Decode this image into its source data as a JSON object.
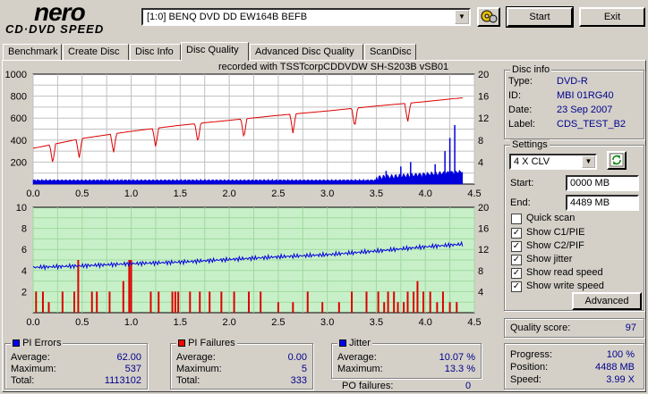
{
  "app": {
    "logo_top": "nero",
    "logo_bottom": "CD·DVD SPEED"
  },
  "toolbar": {
    "drive": "[1:0]   BENQ DVD DD EW164B BEFB",
    "start_label": "Start",
    "exit_label": "Exit"
  },
  "tabs": [
    {
      "label": "Benchmark"
    },
    {
      "label": "Create Disc"
    },
    {
      "label": "Disc Info"
    },
    {
      "label": "Disc Quality"
    },
    {
      "label": "Advanced Disc Quality"
    },
    {
      "label": "ScanDisc"
    }
  ],
  "chart_header": "recorded with TSSTcorpCDDVDW SH-S203B   vSB01",
  "chart_data": [
    {
      "type": "area",
      "name": "top",
      "x_ticks": [
        "0.0",
        "0.5",
        "1.0",
        "1.5",
        "2.0",
        "2.5",
        "3.0",
        "3.5",
        "4.0",
        "4.5"
      ],
      "y_left_ticks": [
        "1000",
        "800",
        "600",
        "400",
        "200"
      ],
      "y_right_ticks": [
        "20",
        "16",
        "12",
        "8",
        "4"
      ],
      "xlim": [
        0,
        4.5
      ],
      "ylim_left": [
        0,
        1000
      ],
      "ylim_right": [
        0,
        20
      ],
      "read_speed": {
        "x": [
          0.0,
          0.5,
          1.0,
          1.5,
          2.0,
          2.5,
          3.0,
          3.5,
          4.0,
          4.38
        ],
        "y": [
          6.5,
          8.3,
          9.6,
          10.7,
          11.6,
          12.5,
          13.3,
          14.2,
          15.0,
          15.7
        ]
      },
      "speed_dips": [
        0.2,
        0.47,
        0.82,
        1.25,
        1.68,
        2.15,
        2.65,
        3.28,
        3.82
      ],
      "pi_errors_baseline": 35,
      "pi_errors_spikes": {
        "x": [
          3.6,
          3.75,
          3.85,
          4.1,
          4.2,
          4.25,
          4.3
        ],
        "y": [
          120,
          160,
          200,
          180,
          300,
          420,
          537
        ]
      }
    },
    {
      "type": "bar",
      "name": "bottom",
      "x_ticks": [
        "0.0",
        "0.5",
        "1.0",
        "1.5",
        "2.0",
        "2.5",
        "3.0",
        "3.5",
        "4.0",
        "4.5"
      ],
      "y_left_ticks": [
        "10",
        "8",
        "6",
        "4",
        "2"
      ],
      "y_right_ticks": [
        "20",
        "16",
        "12",
        "8",
        "4"
      ],
      "xlim": [
        0,
        4.5
      ],
      "ylim_left": [
        0,
        10
      ],
      "ylim_right": [
        0,
        20
      ],
      "pi_failures": {
        "x": [
          0.03,
          0.1,
          0.16,
          0.3,
          0.42,
          0.46,
          0.6,
          0.65,
          0.78,
          0.92,
          0.98,
          1.0,
          1.2,
          1.28,
          1.42,
          1.45,
          1.48,
          1.6,
          1.7,
          1.8,
          1.92,
          2.05,
          2.2,
          2.32,
          2.5,
          2.65,
          2.8,
          2.95,
          3.12,
          3.25,
          3.4,
          3.52,
          3.58,
          3.62,
          3.68,
          3.72,
          3.78,
          3.82,
          3.88,
          3.92,
          3.98,
          4.05,
          4.12,
          4.18,
          4.25,
          4.32
        ],
        "y": [
          2,
          2,
          1,
          2,
          2,
          5,
          2,
          2,
          2,
          3,
          5,
          5,
          2,
          2,
          2,
          2,
          2,
          2,
          2,
          2,
          2,
          2,
          2,
          2,
          1,
          1,
          2,
          1,
          1,
          2,
          2,
          2,
          1,
          2,
          2,
          1,
          1,
          2,
          2,
          3,
          2,
          2,
          1,
          2,
          1,
          1
        ]
      },
      "jitter": {
        "x": [
          0.0,
          0.5,
          1.0,
          1.5,
          2.0,
          2.5,
          3.0,
          3.5,
          4.0,
          4.38
        ],
        "y": [
          8.6,
          8.9,
          9.3,
          9.6,
          10.1,
          10.6,
          11.0,
          11.7,
          12.5,
          13.0
        ]
      }
    }
  ],
  "disc_info": {
    "title": "Disc info",
    "type_label": "Type:",
    "type": "DVD-R",
    "id_label": "ID:",
    "id": "MBI 01RG40",
    "date_label": "Date:",
    "date": "23 Sep 2007",
    "label_label": "Label:",
    "label": "CDS_TEST_B2"
  },
  "settings": {
    "title": "Settings",
    "speed": "4 X CLV",
    "start_label": "Start:",
    "start_value": "0000 MB",
    "end_label": "End:",
    "end_value": "4489 MB",
    "checks": [
      {
        "label": "Quick scan",
        "checked": false
      },
      {
        "label": "Show C1/PIE",
        "checked": true
      },
      {
        "label": "Show C2/PIF",
        "checked": true
      },
      {
        "label": "Show jitter",
        "checked": true
      },
      {
        "label": "Show read speed",
        "checked": true
      },
      {
        "label": "Show write speed",
        "checked": true
      }
    ],
    "advanced_label": "Advanced"
  },
  "quality": {
    "label": "Quality score:",
    "value": "97"
  },
  "progress": {
    "progress_label": "Progress:",
    "progress_value": "100 %",
    "position_label": "Position:",
    "position_value": "4488 MB",
    "speed_label": "Speed:",
    "speed_value": "3.99 X"
  },
  "pi_errors": {
    "title": "PI Errors",
    "color": "#0000ff",
    "avg_label": "Average:",
    "avg": "62.00",
    "max_label": "Maximum:",
    "max": "537",
    "total_label": "Total:",
    "total": "1113102"
  },
  "pi_failures": {
    "title": "PI Failures",
    "color": "#ff0000",
    "avg_label": "Average:",
    "avg": "0.00",
    "max_label": "Maximum:",
    "max": "5",
    "total_label": "Total:",
    "total": "333"
  },
  "jitter": {
    "title": "Jitter",
    "color": "#0000ff",
    "avg_label": "Average:",
    "avg": "10.07 %",
    "max_label": "Maximum:",
    "max": "13.3 %",
    "po_label": "PO failures:",
    "po": "0"
  }
}
